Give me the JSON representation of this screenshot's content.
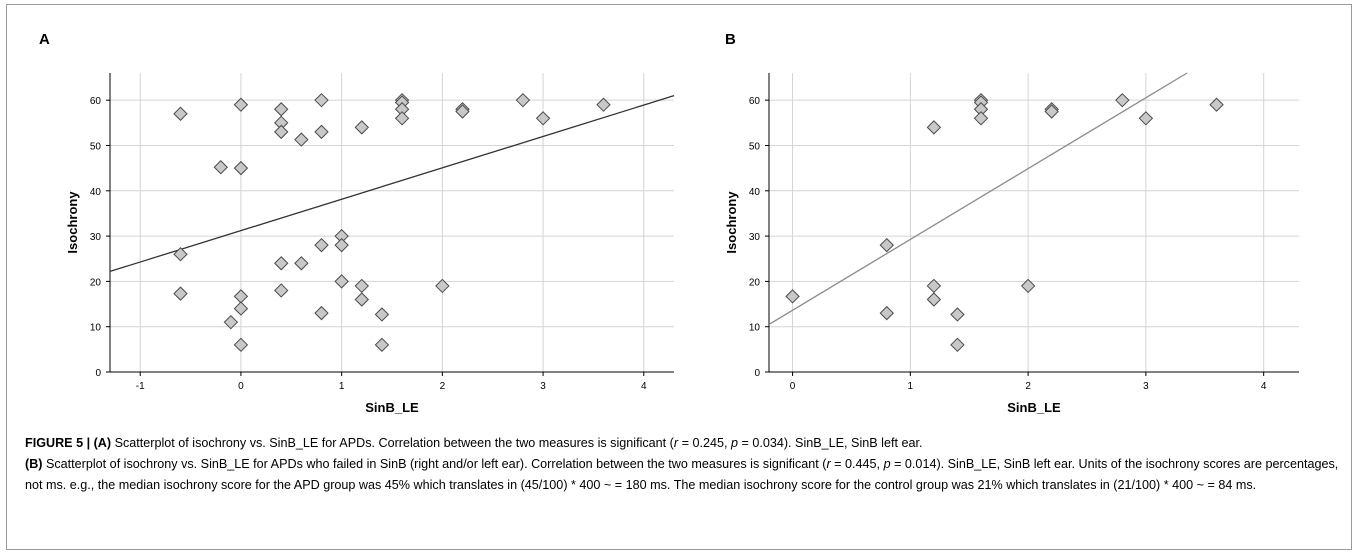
{
  "chart_data": [
    {
      "type": "scatter",
      "panel_label": "A",
      "xlabel": "SinB_LE",
      "ylabel": "Isochrony",
      "xlim": [
        -1.3,
        4.3
      ],
      "ylim": [
        0,
        66
      ],
      "xticks": [
        -1,
        0,
        1,
        2,
        3,
        4
      ],
      "yticks": [
        0,
        10,
        20,
        30,
        40,
        50,
        60
      ],
      "grid": true,
      "marker": "diamond",
      "points": [
        {
          "x": -0.6,
          "y": 57
        },
        {
          "x": -0.6,
          "y": 26
        },
        {
          "x": -0.6,
          "y": 17.3
        },
        {
          "x": -0.2,
          "y": 45.2
        },
        {
          "x": -0.1,
          "y": 11
        },
        {
          "x": 0.0,
          "y": 59
        },
        {
          "x": 0.0,
          "y": 45
        },
        {
          "x": 0.0,
          "y": 16.7
        },
        {
          "x": 0.0,
          "y": 14
        },
        {
          "x": 0.0,
          "y": 6
        },
        {
          "x": 0.4,
          "y": 58
        },
        {
          "x": 0.4,
          "y": 55
        },
        {
          "x": 0.4,
          "y": 53
        },
        {
          "x": 0.4,
          "y": 24
        },
        {
          "x": 0.4,
          "y": 18
        },
        {
          "x": 0.6,
          "y": 51.3
        },
        {
          "x": 0.6,
          "y": 24
        },
        {
          "x": 0.8,
          "y": 60
        },
        {
          "x": 0.8,
          "y": 53
        },
        {
          "x": 0.8,
          "y": 28
        },
        {
          "x": 0.8,
          "y": 13
        },
        {
          "x": 1.0,
          "y": 30
        },
        {
          "x": 1.0,
          "y": 28
        },
        {
          "x": 1.0,
          "y": 20
        },
        {
          "x": 1.2,
          "y": 54
        },
        {
          "x": 1.2,
          "y": 19
        },
        {
          "x": 1.2,
          "y": 16
        },
        {
          "x": 1.4,
          "y": 12.7
        },
        {
          "x": 1.4,
          "y": 6
        },
        {
          "x": 1.6,
          "y": 60
        },
        {
          "x": 1.6,
          "y": 59.5
        },
        {
          "x": 1.6,
          "y": 58
        },
        {
          "x": 1.6,
          "y": 56
        },
        {
          "x": 2.0,
          "y": 19
        },
        {
          "x": 2.2,
          "y": 58
        },
        {
          "x": 2.2,
          "y": 57.5
        },
        {
          "x": 2.8,
          "y": 60
        },
        {
          "x": 3.0,
          "y": 56
        },
        {
          "x": 3.6,
          "y": 59
        }
      ],
      "fit_line": {
        "from": [
          -1.3,
          22.2
        ],
        "to": [
          4.3,
          61
        ]
      }
    },
    {
      "type": "scatter",
      "panel_label": "B",
      "xlabel": "SinB_LE",
      "ylabel": "Isochrony",
      "xlim": [
        -0.2,
        4.3
      ],
      "ylim": [
        0,
        66
      ],
      "xticks": [
        0,
        1,
        2,
        3,
        4
      ],
      "yticks": [
        0,
        10,
        20,
        30,
        40,
        50,
        60
      ],
      "grid": true,
      "marker": "diamond",
      "points": [
        {
          "x": 0.0,
          "y": 16.7
        },
        {
          "x": 0.8,
          "y": 28
        },
        {
          "x": 0.8,
          "y": 13
        },
        {
          "x": 1.2,
          "y": 54
        },
        {
          "x": 1.2,
          "y": 19
        },
        {
          "x": 1.2,
          "y": 16
        },
        {
          "x": 1.4,
          "y": 12.7
        },
        {
          "x": 1.4,
          "y": 6
        },
        {
          "x": 1.6,
          "y": 60
        },
        {
          "x": 1.6,
          "y": 59.5
        },
        {
          "x": 1.6,
          "y": 58
        },
        {
          "x": 1.6,
          "y": 56
        },
        {
          "x": 2.0,
          "y": 19
        },
        {
          "x": 2.2,
          "y": 58
        },
        {
          "x": 2.2,
          "y": 57.5
        },
        {
          "x": 2.8,
          "y": 60
        },
        {
          "x": 3.0,
          "y": 56
        },
        {
          "x": 3.6,
          "y": 59
        }
      ],
      "fit_line": {
        "from": [
          -0.2,
          10.5
        ],
        "to": [
          3.35,
          66
        ]
      }
    }
  ],
  "caption": {
    "figure_label": "FIGURE 5 |",
    "part_a_label": "(A)",
    "part_a_text": " Scatterplot of isochrony vs. SinB_LE for APDs. Correlation between the two measures is significant (",
    "part_a_r_sym": "r",
    "part_a_r_val": " = 0.245, ",
    "part_a_p_sym": "p",
    "part_a_p_val": " = 0.034). SinB_LE, SinB left ear.",
    "part_b_label": "(B)",
    "part_b_text": " Scatterplot of isochrony vs. SinB_LE for APDs who failed in SinB (right and/or left ear). Correlation between the two measures is significant (",
    "part_b_r_sym": "r",
    "part_b_r_val": " = 0.445, ",
    "part_b_p_sym": "p",
    "part_b_p_val": " = 0.014).",
    "part_b_rest": " SinB_LE, SinB left ear. Units of the isochrony scores are percentages, not ms. e.g., the median isochrony score for the APD group was 45% which translates in (45/100) * 400 ~ = 180 ms. The median isochrony score for the control group was 21% which translates in (21/100) * 400 ~ = 84 ms."
  },
  "colors": {
    "marker_fill": "#c8c8c8",
    "marker_stroke": "#4a4a4a",
    "grid": "#d4d4d4",
    "fit_line_a": "#333333",
    "fit_line_b": "#8a8a8a"
  }
}
